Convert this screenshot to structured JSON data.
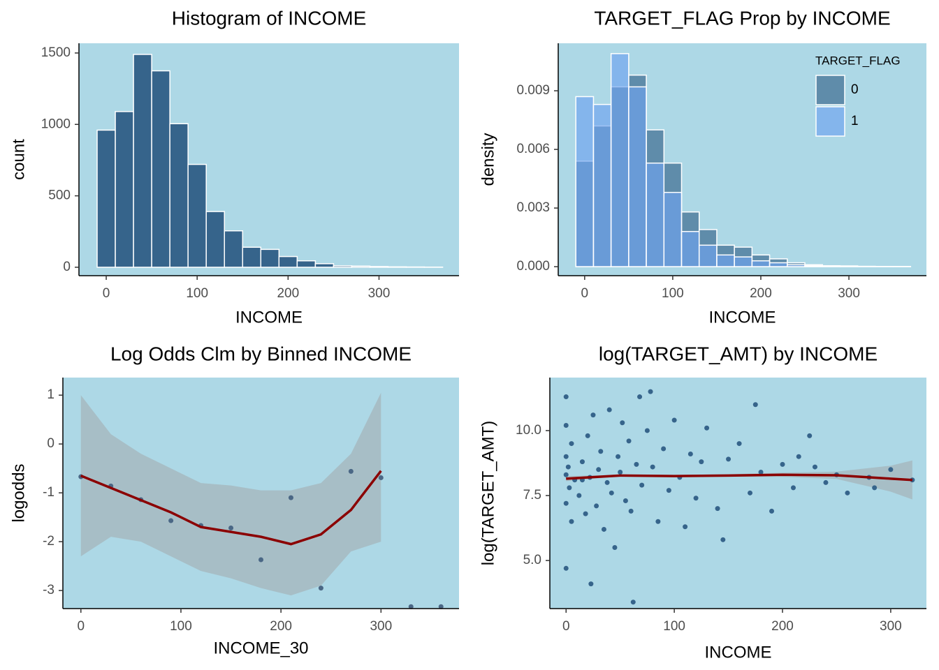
{
  "chart_data": [
    {
      "type": "histogram",
      "title": "Histogram of INCOME",
      "xlabel": "INCOME",
      "ylabel": "count",
      "bins": [
        -10,
        10,
        30,
        50,
        70,
        90,
        110,
        130,
        150,
        170,
        190,
        210,
        230,
        250,
        270,
        290,
        310,
        330,
        350,
        370
      ],
      "values": [
        960,
        1090,
        1490,
        1375,
        1005,
        720,
        390,
        255,
        140,
        125,
        75,
        45,
        25,
        10,
        8,
        5,
        3,
        2,
        1
      ],
      "color": "#36648b",
      "xlim": [
        -30,
        388
      ],
      "ylim": [
        -59,
        1568
      ],
      "xticks": [
        0,
        100,
        200,
        300
      ],
      "yticks": [
        0,
        500,
        1000,
        1500
      ]
    },
    {
      "type": "histogram",
      "title": "TARGET_FLAG Prop by INCOME",
      "xlabel": "INCOME",
      "ylabel": "density",
      "legend_title": "TARGET_FLAG",
      "legend": "top-right",
      "bins": [
        -10,
        10,
        30,
        50,
        70,
        90,
        110,
        130,
        150,
        170,
        190,
        210,
        230,
        250,
        270,
        290,
        310,
        330,
        350,
        370
      ],
      "series": [
        {
          "name": "0",
          "color": "#36648b",
          "values": [
            0.0054,
            0.0072,
            0.0092,
            0.0098,
            0.007,
            0.0053,
            0.0028,
            0.0019,
            0.0011,
            0.001,
            0.0006,
            0.0004,
            0.0002,
            0.0001,
            5e-05,
            4e-05,
            2e-05,
            1e-05,
            1e-05
          ]
        },
        {
          "name": "1",
          "color": "#6fa3f0",
          "values": [
            0.0087,
            0.0083,
            0.0109,
            0.0092,
            0.0053,
            0.0038,
            0.0018,
            0.0011,
            0.0006,
            0.0005,
            0.0003,
            0.0002,
            0.0001,
            5e-05,
            3e-05,
            2e-05,
            1e-05,
            1e-05,
            1e-05
          ]
        }
      ],
      "xlim": [
        -30,
        388
      ],
      "ylim": [
        -0.00046,
        0.01143
      ],
      "xticks": [
        0,
        100,
        200,
        300
      ],
      "yticks": [
        {
          "value": 0,
          "label": "0.000"
        },
        0.003,
        0.006,
        0.009
      ]
    },
    {
      "type": "scatter",
      "title": "Log Odds Clm by Binned INCOME",
      "xlabel": "INCOME_30",
      "ylabel": "logodds",
      "x": [
        0,
        30,
        60,
        90,
        120,
        150,
        180,
        210,
        240,
        270,
        300,
        330,
        360
      ],
      "values": [
        -0.67,
        -0.86,
        -1.14,
        -1.57,
        -1.67,
        -1.72,
        -2.37,
        -1.1,
        -2.95,
        -0.56,
        -0.69,
        -3.33,
        -3.33
      ],
      "color": "#4a6785",
      "smooth": {
        "color": "#8b0000",
        "x": [
          0,
          30,
          60,
          90,
          120,
          150,
          180,
          210,
          240,
          270,
          300
        ],
        "y": [
          -0.65,
          -0.9,
          -1.15,
          -1.4,
          -1.7,
          -1.8,
          -1.9,
          -2.05,
          -1.85,
          -1.35,
          -0.55
        ],
        "upper": [
          1.0,
          0.2,
          -0.2,
          -0.5,
          -0.8,
          -0.85,
          -0.95,
          -0.95,
          -0.8,
          -0.2,
          1.05
        ],
        "lower": [
          -2.3,
          -1.9,
          -2.0,
          -2.3,
          -2.6,
          -2.75,
          -2.95,
          -3.1,
          -2.9,
          -2.2,
          -2.0
        ]
      },
      "xlim": [
        -18,
        378
      ],
      "ylim": [
        -3.37,
        1.36
      ],
      "xticks": [
        0,
        100,
        200,
        300
      ],
      "yticks": [
        1,
        0,
        -1,
        -2,
        -3
      ]
    },
    {
      "type": "scatter",
      "title": "log(TARGET_AMT) by INCOME",
      "xlabel": "INCOME",
      "ylabel": "log(TARGET_AMT)",
      "x": [
        0,
        0,
        0,
        0,
        0,
        2,
        3,
        5,
        5,
        8,
        0,
        12,
        15,
        18,
        20,
        22,
        23,
        25,
        28,
        30,
        32,
        35,
        38,
        40,
        42,
        45,
        48,
        50,
        52,
        55,
        58,
        60,
        62,
        65,
        68,
        70,
        75,
        78,
        80,
        85,
        90,
        95,
        100,
        105,
        110,
        115,
        120,
        125,
        130,
        140,
        145,
        150,
        160,
        170,
        175,
        180,
        190,
        200,
        210,
        215,
        225,
        230,
        240,
        250,
        260,
        280,
        285,
        300,
        320,
        15
      ],
      "values": [
        8.3,
        9.0,
        7.2,
        10.2,
        4.7,
        8.6,
        7.8,
        9.5,
        6.5,
        8.1,
        11.3,
        7.5,
        8.8,
        6.8,
        9.8,
        8.2,
        4.1,
        10.6,
        7.1,
        8.5,
        9.2,
        6.2,
        8.0,
        10.8,
        7.6,
        5.5,
        9.0,
        8.4,
        10.3,
        7.3,
        9.6,
        6.9,
        3.4,
        8.7,
        11.3,
        7.9,
        10.0,
        11.5,
        8.6,
        6.5,
        9.3,
        7.7,
        10.4,
        8.2,
        6.3,
        9.1,
        7.4,
        8.8,
        10.1,
        7.0,
        5.8,
        8.9,
        9.5,
        7.6,
        11.0,
        8.4,
        6.9,
        8.7,
        7.8,
        9.0,
        9.8,
        8.6,
        8.0,
        8.3,
        7.6,
        8.2,
        7.8,
        8.5,
        8.1,
        8.1
      ],
      "color": "#36648b",
      "smooth": {
        "color": "#8b0000",
        "x": [
          0,
          50,
          100,
          150,
          200,
          250,
          300,
          320
        ],
        "y": [
          8.15,
          8.27,
          8.25,
          8.27,
          8.3,
          8.28,
          8.15,
          8.1
        ],
        "upper": [
          8.25,
          8.3,
          8.29,
          8.32,
          8.38,
          8.42,
          8.65,
          8.85
        ],
        "lower": [
          8.05,
          8.24,
          8.21,
          8.22,
          8.22,
          8.14,
          7.65,
          7.35
        ]
      },
      "xlim": [
        -15,
        333
      ],
      "ylim": [
        3.15,
        12.04
      ],
      "xticks": [
        0,
        100,
        200,
        300
      ],
      "yticks": [
        {
          "value": 5,
          "label": "5.0"
        },
        7.5,
        {
          "value": 10,
          "label": "10.0"
        }
      ]
    }
  ]
}
